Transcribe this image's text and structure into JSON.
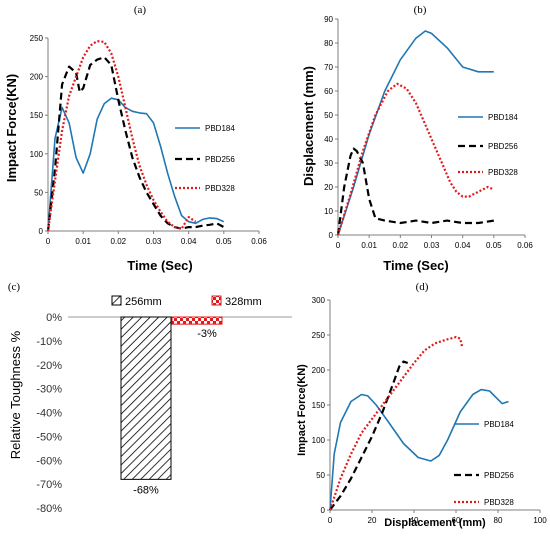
{
  "chart_data": [
    {
      "panel": "(a)",
      "type": "line",
      "xlabel": "Time (Sec)",
      "ylabel": "Impact Force(KN)",
      "xlim": [
        0,
        0.06
      ],
      "ylim": [
        0,
        250
      ],
      "xticks": [
        "0",
        "0.01",
        "0.02",
        "0.03",
        "0.04",
        "0.05",
        "0.06"
      ],
      "yticks": [
        "0",
        "50",
        "100",
        "150",
        "200",
        "250"
      ],
      "series": [
        {
          "name": "PBD184",
          "style": "solid",
          "color": "#1f77b4",
          "x": [
            0,
            0.002,
            0.004,
            0.006,
            0.008,
            0.01,
            0.012,
            0.014,
            0.016,
            0.018,
            0.02,
            0.022,
            0.024,
            0.026,
            0.028,
            0.03,
            0.032,
            0.034,
            0.036,
            0.038,
            0.04,
            0.042,
            0.044,
            0.046,
            0.048,
            0.05
          ],
          "y": [
            0,
            120,
            160,
            140,
            95,
            75,
            100,
            145,
            165,
            172,
            170,
            160,
            155,
            153,
            152,
            140,
            110,
            75,
            45,
            20,
            12,
            10,
            15,
            17,
            16,
            12
          ]
        },
        {
          "name": "PBD256",
          "style": "dashed",
          "color": "#000000",
          "x": [
            0,
            0.002,
            0.004,
            0.006,
            0.008,
            0.009,
            0.01,
            0.012,
            0.014,
            0.016,
            0.018,
            0.02,
            0.022,
            0.024,
            0.026,
            0.028,
            0.03,
            0.032,
            0.034,
            0.036,
            0.038,
            0.04,
            0.042,
            0.044,
            0.046,
            0.048,
            0.05
          ],
          "y": [
            0,
            80,
            190,
            213,
            205,
            180,
            185,
            215,
            222,
            225,
            215,
            170,
            130,
            95,
            70,
            50,
            35,
            20,
            10,
            5,
            3,
            5,
            5,
            7,
            8,
            10,
            5
          ]
        },
        {
          "name": "PBD328",
          "style": "dotted",
          "color": "#e31a1c",
          "x": [
            0,
            0.002,
            0.004,
            0.006,
            0.008,
            0.01,
            0.012,
            0.014,
            0.016,
            0.018,
            0.02,
            0.022,
            0.024,
            0.026,
            0.028,
            0.03,
            0.032,
            0.034,
            0.036,
            0.038,
            0.04,
            0.042
          ],
          "y": [
            0,
            65,
            130,
            175,
            200,
            225,
            240,
            246,
            245,
            230,
            200,
            160,
            120,
            85,
            60,
            40,
            25,
            12,
            5,
            3,
            18,
            12
          ]
        }
      ]
    },
    {
      "panel": "(b)",
      "type": "line",
      "xlabel": "Time (Sec)",
      "ylabel": "Displacement (mm)",
      "xlim": [
        0,
        0.06
      ],
      "ylim": [
        0,
        90
      ],
      "xticks": [
        "0",
        "0.01",
        "0.02",
        "0.03",
        "0.04",
        "0.05",
        "0.06"
      ],
      "yticks": [
        "0",
        "10",
        "20",
        "30",
        "40",
        "50",
        "60",
        "70",
        "80",
        "90"
      ],
      "series": [
        {
          "name": "PBD184",
          "style": "solid",
          "color": "#1f77b4",
          "x": [
            0,
            0.005,
            0.01,
            0.015,
            0.02,
            0.025,
            0.028,
            0.03,
            0.035,
            0.04,
            0.045,
            0.048,
            0.05
          ],
          "y": [
            0,
            20,
            42,
            60,
            73,
            82,
            85,
            84,
            78,
            70,
            68,
            68,
            68
          ]
        },
        {
          "name": "PBD256",
          "style": "dashed",
          "color": "#000000",
          "x": [
            0,
            0.002,
            0.004,
            0.005,
            0.006,
            0.008,
            0.01,
            0.012,
            0.015,
            0.02,
            0.025,
            0.03,
            0.035,
            0.04,
            0.045,
            0.05
          ],
          "y": [
            0,
            20,
            33,
            36,
            35,
            30,
            15,
            7,
            6,
            5,
            6,
            5,
            6,
            5,
            5,
            6
          ]
        },
        {
          "name": "PBD328",
          "style": "dotted",
          "color": "#e31a1c",
          "x": [
            0,
            0.004,
            0.008,
            0.012,
            0.016,
            0.019,
            0.022,
            0.025,
            0.028,
            0.03,
            0.033,
            0.036,
            0.038,
            0.04,
            0.042,
            0.045,
            0.048,
            0.05
          ],
          "y": [
            0,
            17,
            35,
            50,
            60,
            63,
            61,
            55,
            46,
            40,
            31,
            22,
            18,
            16,
            16,
            18,
            20,
            19
          ]
        }
      ]
    },
    {
      "panel": "(c)",
      "type": "bar",
      "ylabel": "Relative Toughness %",
      "ylim": [
        -80,
        0
      ],
      "yticks": [
        "0%",
        "-10%",
        "-20%",
        "-30%",
        "-40%",
        "-50%",
        "-60%",
        "-70%",
        "-80%"
      ],
      "categories": [
        "256mm",
        "328mm"
      ],
      "values": [
        -68,
        -3
      ],
      "data_labels": [
        "-68%",
        "-3%"
      ],
      "colors": [
        "#000000",
        "#e31a1c"
      ]
    },
    {
      "panel": "(d)",
      "type": "line",
      "xlabel": "Displacement (mm)",
      "ylabel": "Impact Force(KN)",
      "xlim": [
        0,
        100
      ],
      "ylim": [
        0,
        300
      ],
      "xticks": [
        "0",
        "20",
        "40",
        "60",
        "80",
        "100"
      ],
      "yticks": [
        "0",
        "50",
        "100",
        "150",
        "200",
        "250",
        "300"
      ],
      "series": [
        {
          "name": "PBD184",
          "style": "solid",
          "color": "#1f77b4",
          "x": [
            0,
            2,
            5,
            10,
            15,
            18,
            22,
            28,
            35,
            42,
            48,
            52,
            56,
            62,
            68,
            72,
            76,
            80,
            82,
            85
          ],
          "y": [
            0,
            80,
            125,
            155,
            165,
            163,
            150,
            125,
            95,
            75,
            70,
            78,
            100,
            140,
            165,
            172,
            170,
            158,
            152,
            155
          ]
        },
        {
          "name": "PBD256",
          "style": "dashed",
          "color": "#000000",
          "x": [
            0,
            5,
            10,
            15,
            20,
            25,
            30,
            33,
            35,
            37
          ],
          "y": [
            0,
            20,
            45,
            75,
            105,
            140,
            180,
            205,
            212,
            210
          ]
        },
        {
          "name": "PBD328",
          "style": "dotted",
          "color": "#e31a1c",
          "x": [
            0,
            5,
            10,
            15,
            20,
            25,
            30,
            35,
            40,
            45,
            50,
            55,
            60,
            62,
            63
          ],
          "y": [
            0,
            45,
            80,
            110,
            130,
            150,
            170,
            190,
            210,
            228,
            238,
            243,
            247,
            245,
            232
          ]
        }
      ]
    }
  ]
}
